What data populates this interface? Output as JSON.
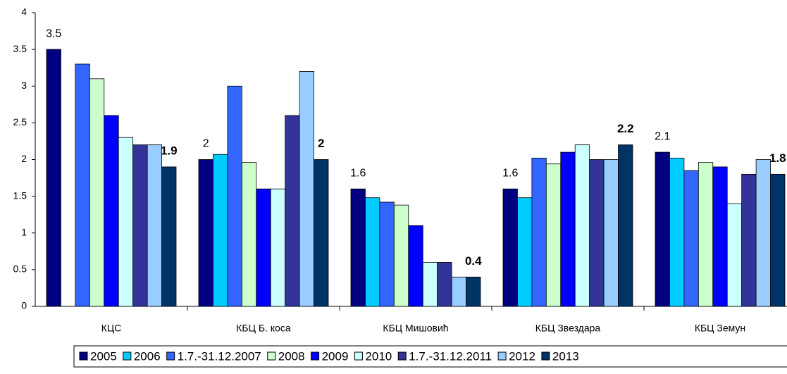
{
  "chart_data": {
    "type": "bar",
    "categories": [
      "КЦС",
      "КБЦ Б. коса",
      "КБЦ Мишовић",
      "КБЦ Звездара",
      "КБЦ Земун"
    ],
    "series": [
      {
        "name": "2005",
        "color": "#000080",
        "values": [
          3.5,
          2,
          1.6,
          1.6,
          2.1
        ],
        "show_labels": true
      },
      {
        "name": "2006",
        "color": "#00ccff",
        "values": [
          null,
          2.07,
          1.48,
          1.48,
          2.02
        ]
      },
      {
        "name": "1.7.-31.12.2007",
        "color": "#3366ff",
        "values": [
          3.3,
          3.0,
          1.42,
          2.02,
          1.85
        ]
      },
      {
        "name": "2008",
        "color": "#ccffcc",
        "values": [
          3.1,
          1.96,
          1.38,
          1.94,
          1.96
        ]
      },
      {
        "name": "2009",
        "color": "#0000ff",
        "values": [
          2.6,
          1.6,
          1.1,
          2.1,
          1.9
        ]
      },
      {
        "name": "2010",
        "color": "#ccffff",
        "values": [
          2.3,
          1.6,
          0.6,
          2.2,
          1.4
        ]
      },
      {
        "name": "1.7.-31.12.2011",
        "color": "#333399",
        "values": [
          2.2,
          2.6,
          0.6,
          2.0,
          1.8
        ]
      },
      {
        "name": "2012",
        "color": "#99ccff",
        "values": [
          2.2,
          3.2,
          0.4,
          2.0,
          2.0
        ]
      },
      {
        "name": "2013",
        "color": "#003366",
        "values": [
          1.9,
          2,
          0.4,
          2.2,
          1.8
        ],
        "show_labels": true,
        "bold_labels": true
      }
    ],
    "ylim": [
      0,
      4
    ],
    "yticks": [
      0,
      0.5,
      1,
      1.5,
      2,
      2.5,
      3,
      3.5,
      4
    ],
    "grid": false,
    "legend": "bottom"
  }
}
